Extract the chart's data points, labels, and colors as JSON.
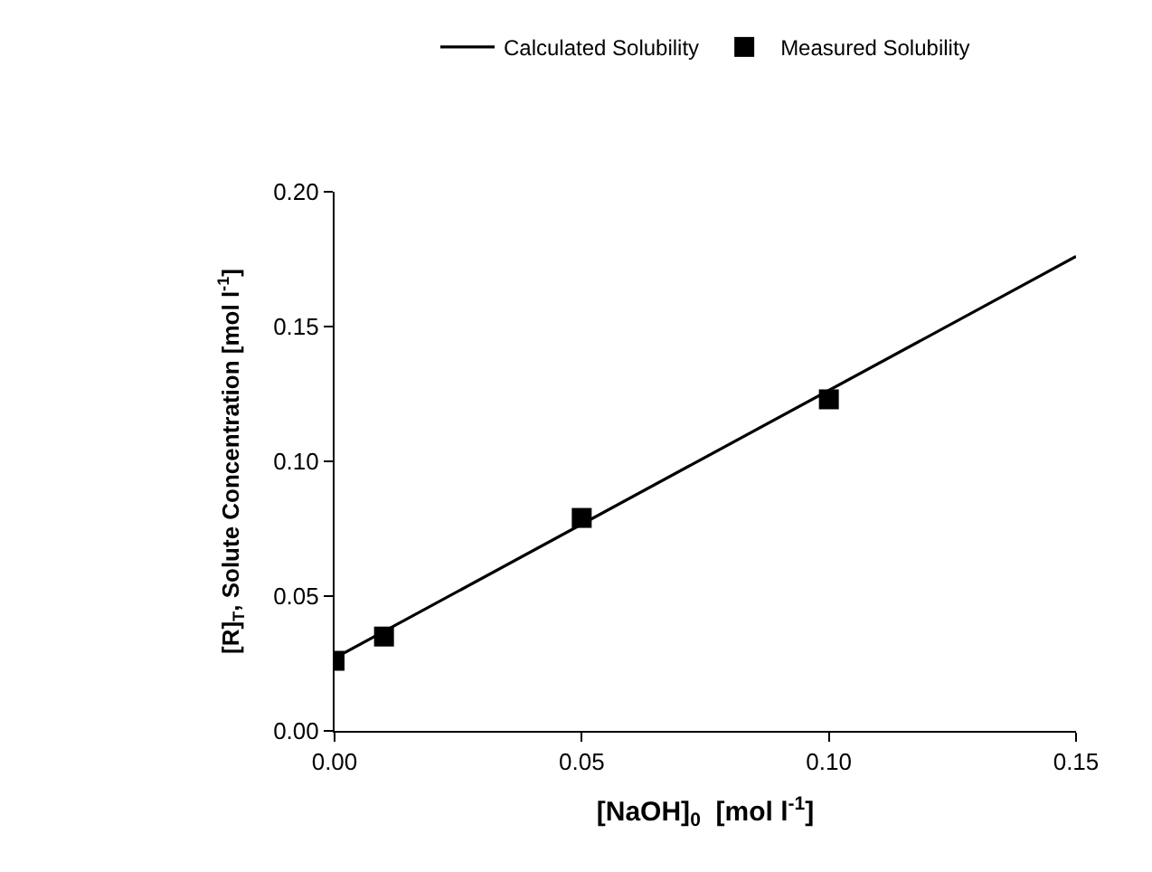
{
  "chart_data": {
    "type": "line",
    "xlabel": "[NaOH]$_{0}$  [mol l$^{-1}$]",
    "ylabel": "[R]$_{T}$, Solute Concentration [mol l$^{-1}$]",
    "xlim": [
      0,
      0.15
    ],
    "xticks": [
      {
        "value": 0,
        "label": "0.00"
      },
      {
        "value": 0.05,
        "label": "0.05"
      },
      {
        "value": 0.1,
        "label": "0.10"
      },
      {
        "value": 0.15,
        "label": "0.15"
      }
    ],
    "ylim": [
      0,
      0.2
    ],
    "yticks": [
      {
        "value": 0,
        "label": "0.00"
      },
      {
        "value": 0.05,
        "label": "0.05"
      },
      {
        "value": 0.1,
        "label": "0.10"
      },
      {
        "value": 0.15,
        "label": "0.15"
      },
      {
        "value": 0.2,
        "label": "0.20"
      }
    ],
    "legend": "top",
    "series": [
      {
        "name": "Calculated Solubility",
        "color": "#000000",
        "marker": "none",
        "line_style": "solid",
        "x": [
          0,
          0.15
        ],
        "values": [
          0.027,
          0.176
        ]
      },
      {
        "name": "Measured Solubility",
        "type": "scatter",
        "color": "#000000",
        "marker": "square",
        "x": [
          0,
          0.01,
          0.05,
          0.1
        ],
        "values": [
          0.026,
          0.035,
          0.079,
          0.123
        ]
      }
    ]
  }
}
